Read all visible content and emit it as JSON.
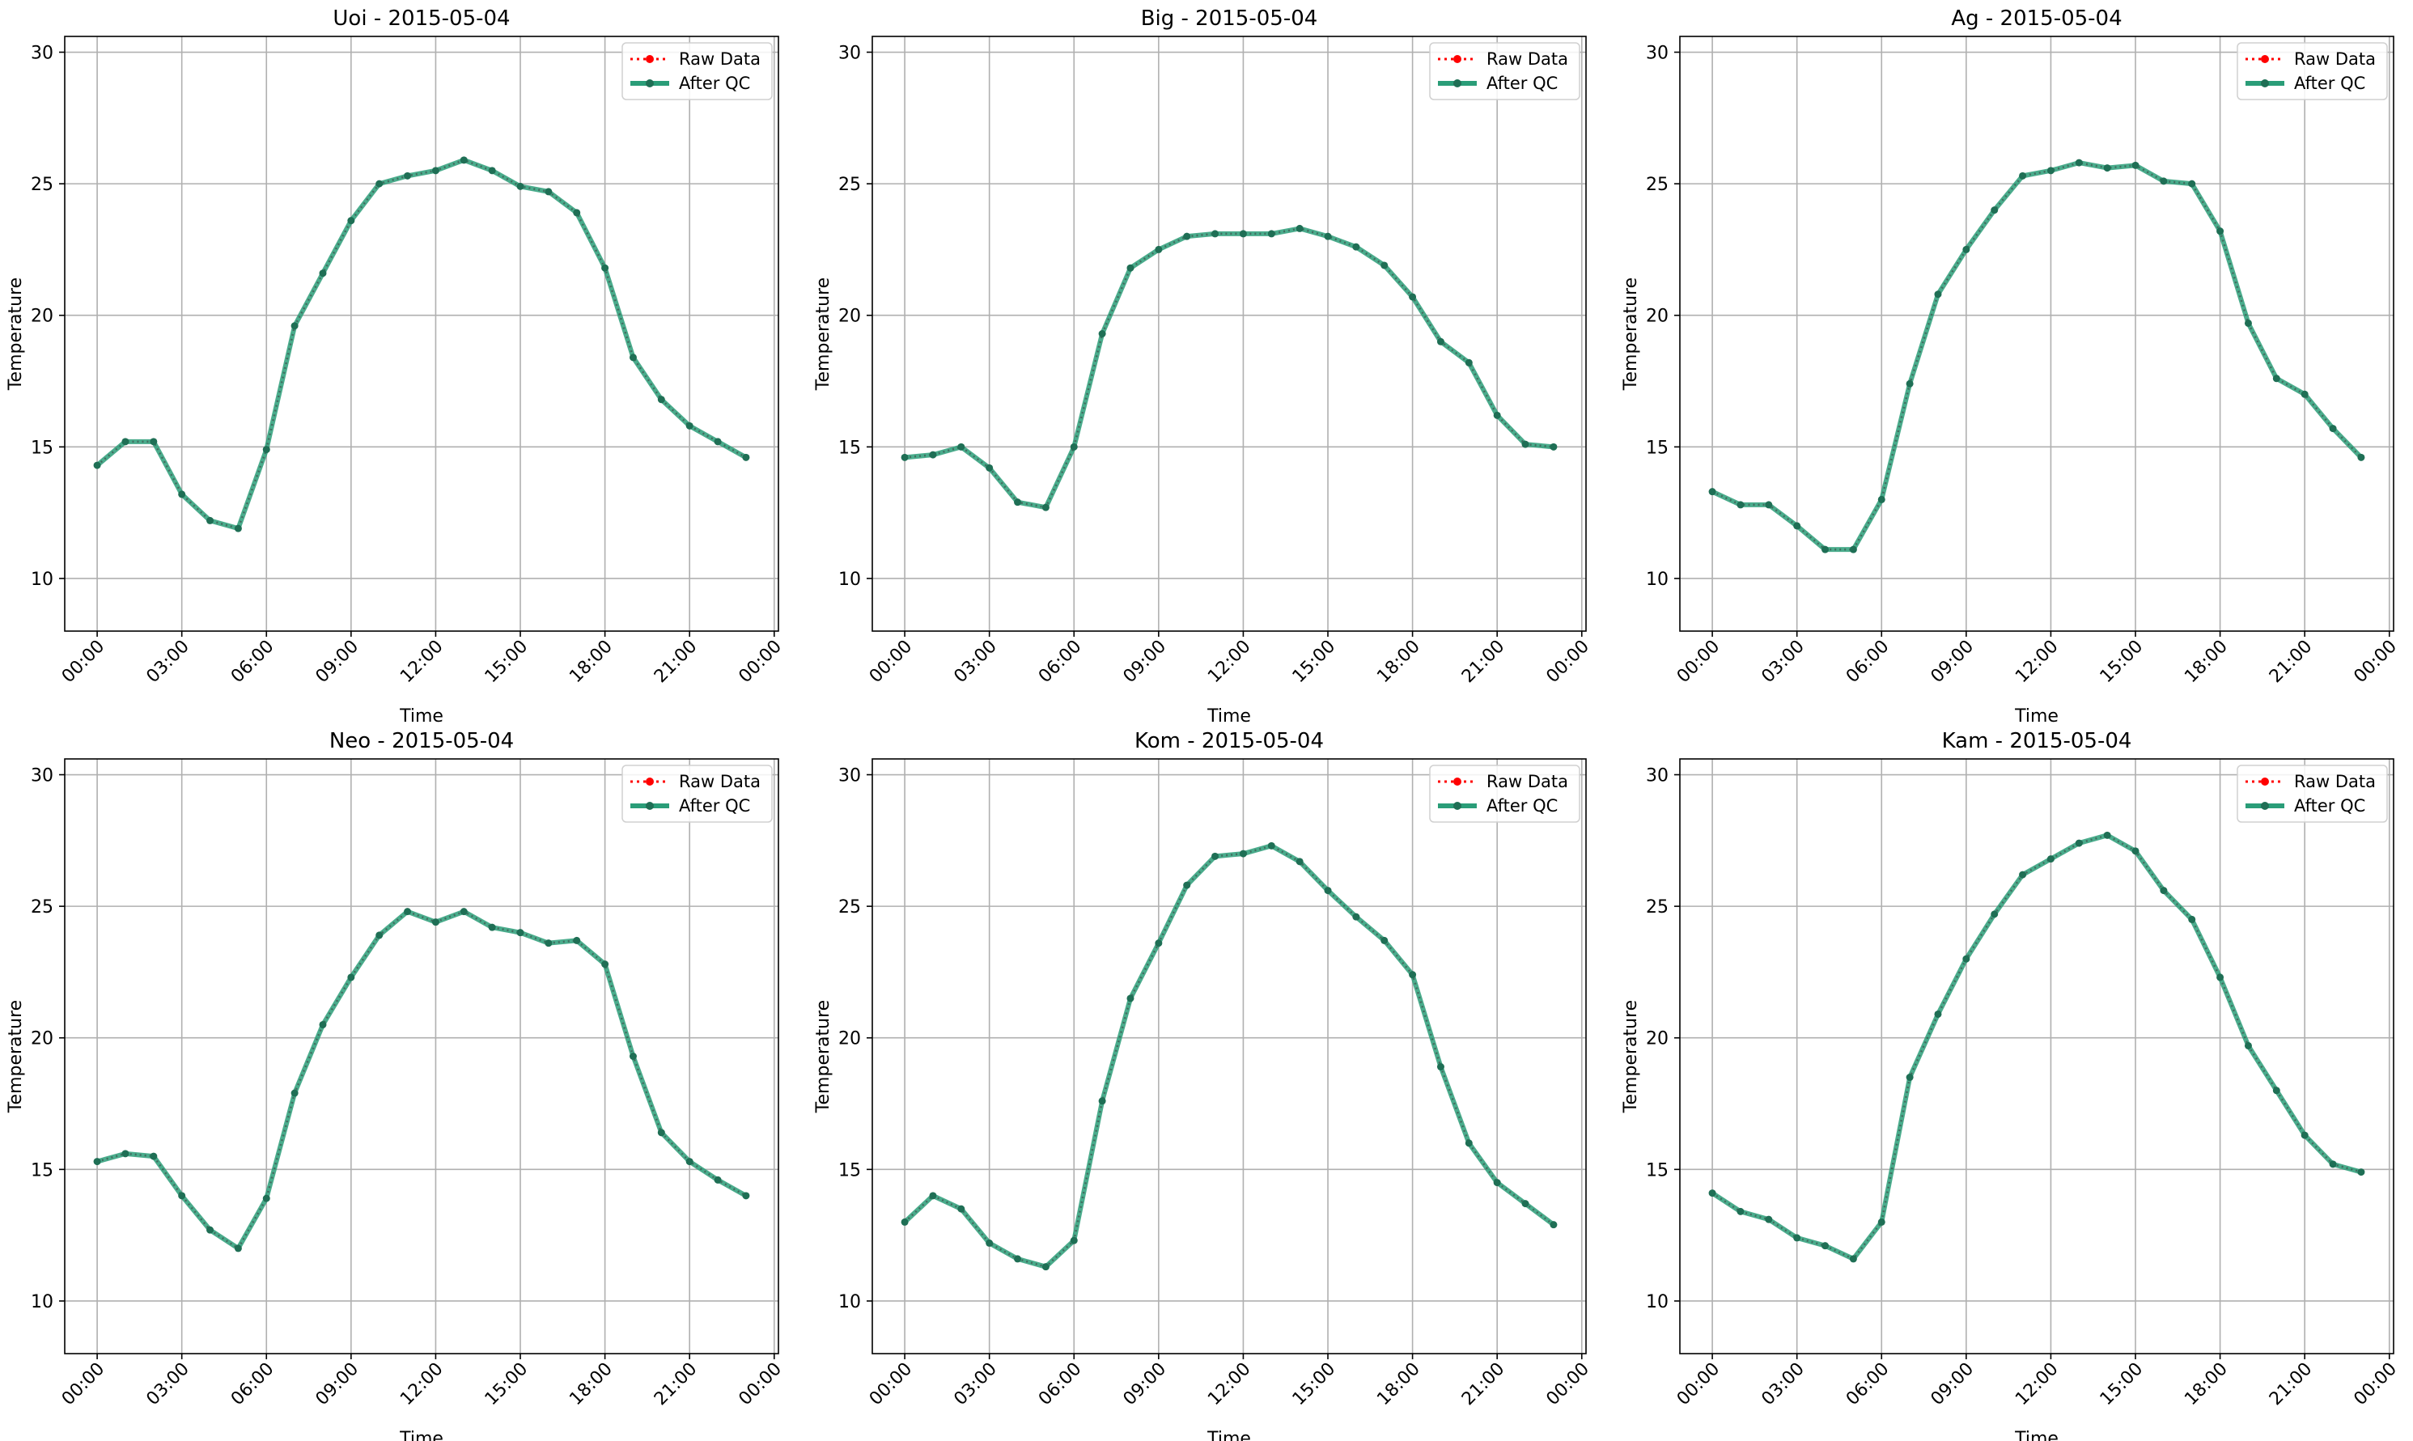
{
  "figure": {
    "layout": "2x3 grid of line charts"
  },
  "chart_data": [
    {
      "type": "line",
      "title": "Uoi - 2015-05-04",
      "xlabel": "Time",
      "ylabel": "Temperature",
      "x_ticks": [
        "00:00",
        "03:00",
        "06:00",
        "09:00",
        "12:00",
        "15:00",
        "18:00",
        "21:00",
        "00:00"
      ],
      "y_ticks": [
        10,
        15,
        20,
        25,
        30
      ],
      "xlim_hours": [
        -1.15,
        24.15
      ],
      "ylim": [
        8,
        30.6
      ],
      "grid": true,
      "legend": {
        "placement": "top-right",
        "entries": [
          "Raw Data",
          "After QC"
        ]
      },
      "x_hours": [
        0,
        1,
        2,
        3,
        4,
        5,
        6,
        7,
        8,
        9,
        10,
        11,
        12,
        13,
        14,
        15,
        16,
        17,
        18,
        19,
        20,
        21,
        22,
        23
      ],
      "series": [
        {
          "name": "Raw Data",
          "color": "#ff0000",
          "values": [
            14.3,
            15.2,
            15.2,
            13.2,
            12.2,
            11.9,
            14.9,
            19.6,
            21.6,
            23.6,
            25.0,
            25.3,
            25.5,
            25.9,
            25.5,
            24.9,
            24.7,
            23.9,
            21.8,
            18.4,
            16.8,
            15.8,
            15.2,
            14.6
          ]
        },
        {
          "name": "After QC",
          "color": "#2a9d78",
          "values": [
            14.3,
            15.2,
            15.2,
            13.2,
            12.2,
            11.9,
            14.9,
            19.6,
            21.6,
            23.6,
            25.0,
            25.3,
            25.5,
            25.9,
            25.5,
            24.9,
            24.7,
            23.9,
            21.8,
            18.4,
            16.8,
            15.8,
            15.2,
            14.6
          ]
        }
      ]
    },
    {
      "type": "line",
      "title": "Big - 2015-05-04",
      "xlabel": "Time",
      "ylabel": "Temperature",
      "x_ticks": [
        "00:00",
        "03:00",
        "06:00",
        "09:00",
        "12:00",
        "15:00",
        "18:00",
        "21:00",
        "00:00"
      ],
      "y_ticks": [
        10,
        15,
        20,
        25,
        30
      ],
      "xlim_hours": [
        -1.15,
        24.15
      ],
      "ylim": [
        8,
        30.6
      ],
      "grid": true,
      "legend": {
        "placement": "top-right",
        "entries": [
          "Raw Data",
          "After QC"
        ]
      },
      "x_hours": [
        0,
        1,
        2,
        3,
        4,
        5,
        6,
        7,
        8,
        9,
        10,
        11,
        12,
        13,
        14,
        15,
        16,
        17,
        18,
        19,
        20,
        21,
        22,
        23
      ],
      "series": [
        {
          "name": "Raw Data",
          "color": "#ff0000",
          "values": [
            14.6,
            14.7,
            15.0,
            14.2,
            12.9,
            12.7,
            15.0,
            19.3,
            21.8,
            22.5,
            23.0,
            23.1,
            23.1,
            23.1,
            23.3,
            23.0,
            22.6,
            21.9,
            20.7,
            19.0,
            18.2,
            16.2,
            15.1,
            15.0
          ]
        },
        {
          "name": "After QC",
          "color": "#2a9d78",
          "values": [
            14.6,
            14.7,
            15.0,
            14.2,
            12.9,
            12.7,
            15.0,
            19.3,
            21.8,
            22.5,
            23.0,
            23.1,
            23.1,
            23.1,
            23.3,
            23.0,
            22.6,
            21.9,
            20.7,
            19.0,
            18.2,
            16.2,
            15.1,
            15.0
          ]
        }
      ]
    },
    {
      "type": "line",
      "title": "Ag - 2015-05-04",
      "xlabel": "Time",
      "ylabel": "Temperature",
      "x_ticks": [
        "00:00",
        "03:00",
        "06:00",
        "09:00",
        "12:00",
        "15:00",
        "18:00",
        "21:00",
        "00:00"
      ],
      "y_ticks": [
        10,
        15,
        20,
        25,
        30
      ],
      "xlim_hours": [
        -1.15,
        24.15
      ],
      "ylim": [
        8,
        30.6
      ],
      "grid": true,
      "legend": {
        "placement": "top-right",
        "entries": [
          "Raw Data",
          "After QC"
        ]
      },
      "x_hours": [
        0,
        1,
        2,
        3,
        4,
        5,
        6,
        7,
        8,
        9,
        10,
        11,
        12,
        13,
        14,
        15,
        16,
        17,
        18,
        19,
        20,
        21,
        22,
        23
      ],
      "series": [
        {
          "name": "Raw Data",
          "color": "#ff0000",
          "values": [
            13.3,
            12.8,
            12.8,
            12.0,
            11.1,
            11.1,
            13.0,
            17.4,
            20.8,
            22.5,
            24.0,
            25.3,
            25.5,
            25.8,
            25.6,
            25.7,
            25.1,
            25.0,
            23.2,
            19.7,
            17.6,
            17.0,
            15.7,
            14.6
          ]
        },
        {
          "name": "After QC",
          "color": "#2a9d78",
          "values": [
            13.3,
            12.8,
            12.8,
            12.0,
            11.1,
            11.1,
            13.0,
            17.4,
            20.8,
            22.5,
            24.0,
            25.3,
            25.5,
            25.8,
            25.6,
            25.7,
            25.1,
            25.0,
            23.2,
            19.7,
            17.6,
            17.0,
            15.7,
            14.6
          ]
        }
      ]
    },
    {
      "type": "line",
      "title": "Neo - 2015-05-04",
      "xlabel": "Time",
      "ylabel": "Temperature",
      "x_ticks": [
        "00:00",
        "03:00",
        "06:00",
        "09:00",
        "12:00",
        "15:00",
        "18:00",
        "21:00",
        "00:00"
      ],
      "y_ticks": [
        10,
        15,
        20,
        25,
        30
      ],
      "xlim_hours": [
        -1.15,
        24.15
      ],
      "ylim": [
        8,
        30.6
      ],
      "grid": true,
      "legend": {
        "placement": "top-right",
        "entries": [
          "Raw Data",
          "After QC"
        ]
      },
      "x_hours": [
        0,
        1,
        2,
        3,
        4,
        5,
        6,
        7,
        8,
        9,
        10,
        11,
        12,
        13,
        14,
        15,
        16,
        17,
        18,
        19,
        20,
        21,
        22,
        23
      ],
      "series": [
        {
          "name": "Raw Data",
          "color": "#ff0000",
          "values": [
            15.3,
            15.6,
            15.5,
            14.0,
            12.7,
            12.0,
            13.9,
            17.9,
            20.5,
            22.3,
            23.9,
            24.8,
            24.4,
            24.8,
            24.2,
            24.0,
            23.6,
            23.7,
            22.8,
            19.3,
            16.4,
            15.3,
            14.6,
            14.0
          ]
        },
        {
          "name": "After QC",
          "color": "#2a9d78",
          "values": [
            15.3,
            15.6,
            15.5,
            14.0,
            12.7,
            12.0,
            13.9,
            17.9,
            20.5,
            22.3,
            23.9,
            24.8,
            24.4,
            24.8,
            24.2,
            24.0,
            23.6,
            23.7,
            22.8,
            19.3,
            16.4,
            15.3,
            14.6,
            14.0
          ]
        }
      ]
    },
    {
      "type": "line",
      "title": "Kom - 2015-05-04",
      "xlabel": "Time",
      "ylabel": "Temperature",
      "x_ticks": [
        "00:00",
        "03:00",
        "06:00",
        "09:00",
        "12:00",
        "15:00",
        "18:00",
        "21:00",
        "00:00"
      ],
      "y_ticks": [
        10,
        15,
        20,
        25,
        30
      ],
      "xlim_hours": [
        -1.15,
        24.15
      ],
      "ylim": [
        8,
        30.6
      ],
      "grid": true,
      "legend": {
        "placement": "top-right",
        "entries": [
          "Raw Data",
          "After QC"
        ]
      },
      "x_hours": [
        0,
        1,
        2,
        3,
        4,
        5,
        6,
        7,
        8,
        9,
        10,
        11,
        12,
        13,
        14,
        15,
        16,
        17,
        18,
        19,
        20,
        21,
        22,
        23
      ],
      "series": [
        {
          "name": "Raw Data",
          "color": "#ff0000",
          "values": [
            13.0,
            14.0,
            13.5,
            12.2,
            11.6,
            11.3,
            12.3,
            17.6,
            21.5,
            23.6,
            25.8,
            26.9,
            27.0,
            27.3,
            26.7,
            25.6,
            24.6,
            23.7,
            22.4,
            18.9,
            16.0,
            14.5,
            13.7,
            12.9
          ]
        },
        {
          "name": "After QC",
          "color": "#2a9d78",
          "values": [
            13.0,
            14.0,
            13.5,
            12.2,
            11.6,
            11.3,
            12.3,
            17.6,
            21.5,
            23.6,
            25.8,
            26.9,
            27.0,
            27.3,
            26.7,
            25.6,
            24.6,
            23.7,
            22.4,
            18.9,
            16.0,
            14.5,
            13.7,
            12.9
          ]
        }
      ]
    },
    {
      "type": "line",
      "title": "Kam - 2015-05-04",
      "xlabel": "Time",
      "ylabel": "Temperature",
      "x_ticks": [
        "00:00",
        "03:00",
        "06:00",
        "09:00",
        "12:00",
        "15:00",
        "18:00",
        "21:00",
        "00:00"
      ],
      "y_ticks": [
        10,
        15,
        20,
        25,
        30
      ],
      "xlim_hours": [
        -1.15,
        24.15
      ],
      "ylim": [
        8,
        30.6
      ],
      "grid": true,
      "legend": {
        "placement": "top-right",
        "entries": [
          "Raw Data",
          "After QC"
        ]
      },
      "x_hours": [
        0,
        1,
        2,
        3,
        4,
        5,
        6,
        7,
        8,
        9,
        10,
        11,
        12,
        13,
        14,
        15,
        16,
        17,
        18,
        19,
        20,
        21,
        22,
        23
      ],
      "series": [
        {
          "name": "Raw Data",
          "color": "#ff0000",
          "values": [
            14.1,
            13.4,
            13.1,
            12.4,
            12.1,
            11.6,
            13.0,
            18.5,
            20.9,
            23.0,
            24.7,
            26.2,
            26.8,
            27.4,
            27.7,
            27.1,
            25.6,
            24.5,
            22.3,
            19.7,
            18.0,
            16.3,
            15.2,
            14.9
          ]
        },
        {
          "name": "After QC",
          "color": "#2a9d78",
          "values": [
            14.1,
            13.4,
            13.1,
            12.4,
            12.1,
            11.6,
            13.0,
            18.5,
            20.9,
            23.0,
            24.7,
            26.2,
            26.8,
            27.4,
            27.7,
            27.1,
            25.6,
            24.5,
            22.3,
            19.7,
            18.0,
            16.3,
            15.2,
            14.9
          ]
        }
      ]
    }
  ]
}
